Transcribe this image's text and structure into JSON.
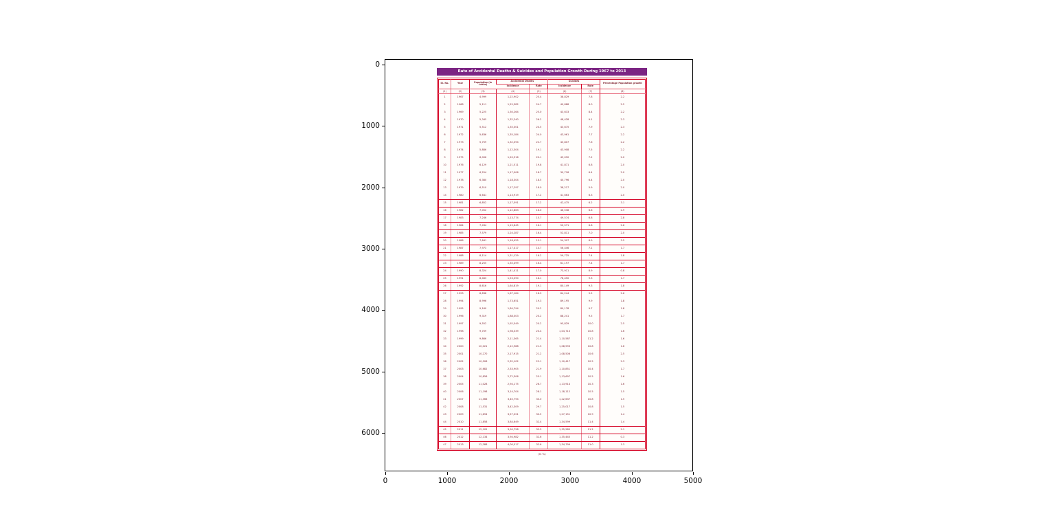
{
  "figure": {
    "x_ticks": [
      "0",
      "1000",
      "2000",
      "3000",
      "4000",
      "5000"
    ],
    "y_ticks": [
      "0",
      "1000",
      "2000",
      "3000",
      "4000",
      "5000",
      "6000"
    ]
  },
  "table_image": {
    "title": "Rate of Accidental Deaths & Suicides and Population Growth During 1967 to 2013",
    "caption": "(In %)",
    "title_bg": "#7b2483",
    "border_color": "#d40022",
    "text_color": "#7d1f2e",
    "headers": {
      "sl": "Sl. No.",
      "year": "Year",
      "population": "Population (in Lakhs)",
      "accidental_deaths": "Accidental Deaths",
      "suicides": "Suicides",
      "incidence": "Incidence",
      "rate": "Rate",
      "growth": "Percentage Population growth"
    },
    "col_index_row": [
      "(1)",
      "(2)",
      "(3)",
      "(4)",
      "(5)",
      "(6)",
      "(7)",
      "(8)"
    ],
    "ruled_rows": [
      [
        14,
        26
      ],
      [
        44,
        47
      ]
    ]
  },
  "chart_data": {
    "type": "table",
    "title": "Rate of Accidental Deaths & Suicides and Population Growth During 1967 to 2013",
    "axes": {
      "xlim": [
        0,
        5000
      ],
      "ylim": [
        6700,
        0
      ],
      "x_ticks": [
        0,
        1000,
        2000,
        3000,
        4000,
        5000
      ],
      "y_ticks": [
        0,
        1000,
        2000,
        3000,
        4000,
        5000,
        6000
      ],
      "grid": false
    },
    "columns": [
      "Sl. No.",
      "Year",
      "Population (in Lakhs)",
      "Accidental Deaths Incidence",
      "Accidental Deaths Rate",
      "Suicides Incidence",
      "Suicides Rate",
      "Percentage Population growth"
    ],
    "rows": [
      [
        "1",
        "1967",
        "4,999",
        "1,22,902",
        "25.4",
        "38,829",
        "7.8",
        "2.2"
      ],
      [
        "2",
        "1968",
        "5,111",
        "1,25,382",
        "24.7",
        "40,888",
        "8.0",
        "2.2"
      ],
      [
        "3",
        "1969",
        "5,225",
        "1,30,264",
        "25.0",
        "43,633",
        "8.4",
        "2.2"
      ],
      [
        "4",
        "1970",
        "5,345",
        "1,32,240",
        "26.2",
        "48,428",
        "9.1",
        "2.3"
      ],
      [
        "5",
        "1971",
        "5,512",
        "1,35,001",
        "24.5",
        "43,675",
        "7.9",
        "2.3"
      ],
      [
        "6",
        "1972",
        "5,636",
        "1,35,184",
        "24.0",
        "43,961",
        "7.7",
        "2.2"
      ],
      [
        "7",
        "1973",
        "5,759",
        "1,32,094",
        "22.7",
        "43,807",
        "7.6",
        "2.2"
      ],
      [
        "8",
        "1974",
        "5,886",
        "1,12,304",
        "19.1",
        "43,908",
        "7.5",
        "2.2"
      ],
      [
        "9",
        "1975",
        "6,006",
        "1,20,916",
        "20.1",
        "43,090",
        "7.2",
        "2.0"
      ],
      [
        "10",
        "1976",
        "6,129",
        "1,21,511",
        "19.8",
        "41,871",
        "6.8",
        "2.0"
      ],
      [
        "11",
        "1977",
        "6,254",
        "1,17,006",
        "18.7",
        "39,718",
        "6.4",
        "2.0"
      ],
      [
        "12",
        "1978",
        "6,380",
        "1,18,304",
        "18.5",
        "40,796",
        "6.4",
        "2.0"
      ],
      [
        "13",
        "1979",
        "6,510",
        "1,17,297",
        "18.0",
        "38,217",
        "5.9",
        "2.0"
      ],
      [
        "14",
        "1980",
        "6,641",
        "1,13,919",
        "17.2",
        "41,663",
        "6.3",
        "2.0"
      ],
      [
        "15",
        "1981",
        "6,852",
        "1,17,591",
        "17.2",
        "42,475",
        "6.2",
        "3.1"
      ],
      [
        "16",
        "1982",
        "7,052",
        "1,12,863",
        "16.0",
        "46,538",
        "6.6",
        "2.9"
      ],
      [
        "17",
        "1983",
        "7,246",
        "1,13,774",
        "15.7",
        "49,574",
        "6.8",
        "2.8"
      ],
      [
        "18",
        "1984",
        "7,434",
        "1,19,645",
        "16.1",
        "50,571",
        "6.8",
        "2.6"
      ],
      [
        "19",
        "1985",
        "7,579",
        "1,24,287",
        "16.4",
        "52,811",
        "7.0",
        "2.0"
      ],
      [
        "20",
        "1986",
        "7,841",
        "1,18,455",
        "15.1",
        "54,397",
        "6.9",
        "3.5"
      ],
      [
        "21",
        "1987",
        "7,973",
        "1,17,417",
        "14.7",
        "56,446",
        "7.1",
        "1.7"
      ],
      [
        "22",
        "1988",
        "8,114",
        "1,31,129",
        "16.2",
        "59,725",
        "7.4",
        "1.8"
      ],
      [
        "23",
        "1989",
        "8,255",
        "1,35,499",
        "16.4",
        "61,197",
        "7.4",
        "1.7"
      ],
      [
        "24",
        "1990",
        "8,324",
        "1,41,411",
        "17.0",
        "73,911",
        "8.9",
        "0.8"
      ],
      [
        "25",
        "1991",
        "8,463",
        "1,53,090",
        "18.1",
        "78,450",
        "9.3",
        "1.7"
      ],
      [
        "26",
        "1992",
        "8,616",
        "1,64,819",
        "19.1",
        "80,149",
        "9.3",
        "1.8"
      ],
      [
        "27",
        "1993",
        "8,838",
        "1,67,184",
        "18.9",
        "84,244",
        "9.5",
        "2.6"
      ],
      [
        "28",
        "1994",
        "8,996",
        "1,73,651",
        "19.3",
        "89,195",
        "9.9",
        "1.8"
      ],
      [
        "29",
        "1995",
        "9,160",
        "1,84,794",
        "20.2",
        "89,178",
        "9.7",
        "1.8"
      ],
      [
        "30",
        "1996",
        "9,319",
        "1,88,003",
        "20.2",
        "88,241",
        "9.5",
        "1.7"
      ],
      [
        "31",
        "1997",
        "9,552",
        "1,92,549",
        "20.2",
        "95,829",
        "10.0",
        "2.5"
      ],
      [
        "32",
        "1998",
        "9,709",
        "1,98,039",
        "20.4",
        "1,04,713",
        "10.8",
        "1.6"
      ],
      [
        "33",
        "1999",
        "9,866",
        "2,11,365",
        "21.4",
        "1,10,587",
        "11.2",
        "1.6"
      ],
      [
        "34",
        "2000",
        "10,021",
        "2,12,988",
        "21.3",
        "1,08,593",
        "10.8",
        "1.6"
      ],
      [
        "35",
        "2001",
        "10,270",
        "2,17,915",
        "21.2",
        "1,08,506",
        "10.6",
        "2.5"
      ],
      [
        "36",
        "2002",
        "10,506",
        "2,32,102",
        "22.1",
        "1,10,417",
        "10.5",
        "2.3"
      ],
      [
        "37",
        "2003",
        "10,682",
        "2,33,905",
        "21.9",
        "1,10,851",
        "10.4",
        "1.7"
      ],
      [
        "38",
        "2004",
        "10,856",
        "2,72,306",
        "25.1",
        "1,13,697",
        "10.5",
        "1.6"
      ],
      [
        "39",
        "2005",
        "11,028",
        "2,94,175",
        "26.7",
        "1,13,914",
        "10.3",
        "1.6"
      ],
      [
        "40",
        "2006",
        "11,198",
        "3,14,704",
        "28.1",
        "1,18,112",
        "10.5",
        "1.5"
      ],
      [
        "41",
        "2007",
        "11,366",
        "3,40,794",
        "30.0",
        "1,22,637",
        "10.8",
        "1.5"
      ],
      [
        "42",
        "2008",
        "11,531",
        "3,42,309",
        "29.7",
        "1,25,017",
        "10.8",
        "1.5"
      ],
      [
        "43",
        "2009",
        "11,694",
        "3,57,021",
        "30.5",
        "1,27,151",
        "10.9",
        "1.4"
      ],
      [
        "44",
        "2010",
        "11,858",
        "3,84,649",
        "32.4",
        "1,34,599",
        "11.4",
        "1.4"
      ],
      [
        "45",
        "2011",
        "12,102",
        "3,90,758",
        "32.3",
        "1,35,585",
        "11.2",
        "2.1"
      ],
      [
        "46",
        "2012",
        "12,134",
        "3,94,982",
        "32.6",
        "1,35,445",
        "11.2",
        "0.3"
      ],
      [
        "47",
        "2013",
        "12,288",
        "4,00,517",
        "32.6",
        "1,34,799",
        "11.0",
        "1.3"
      ]
    ]
  }
}
